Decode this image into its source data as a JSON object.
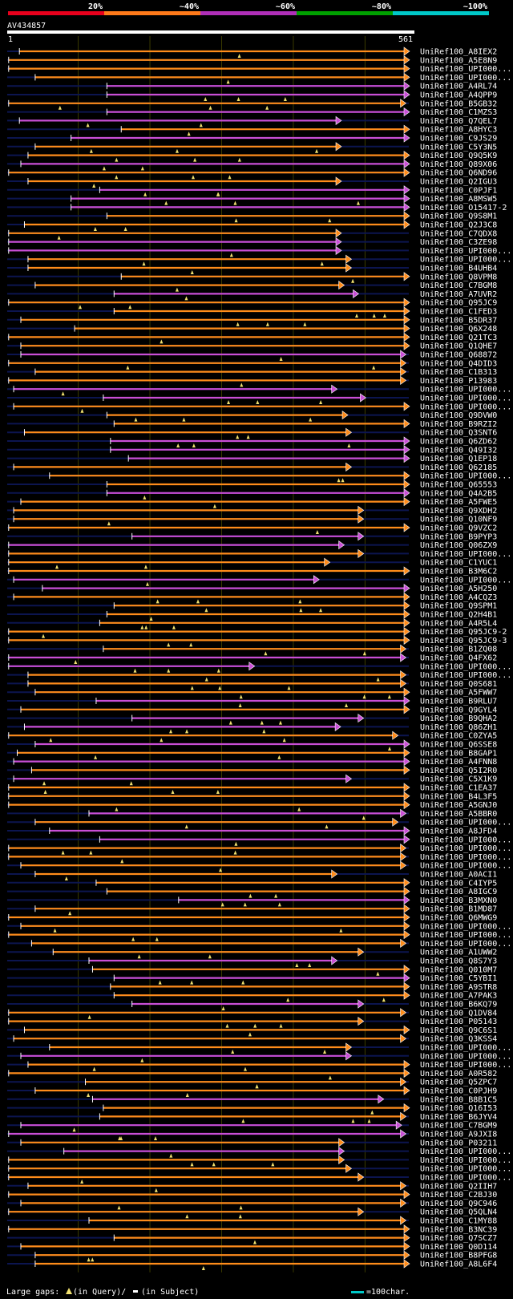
{
  "chart_data": {
    "type": "alignment-overview",
    "query_id": "AV434857",
    "query_start": "1",
    "query_end": "561",
    "query_length": 561,
    "identity_legend": [
      {
        "label": "20%",
        "color": "#e8001c"
      },
      {
        "label": "~40%",
        "color": "#ff7a1a"
      },
      {
        "label": "~60%",
        "color": "#b02fb8"
      },
      {
        "label": "~80%",
        "color": "#00a000"
      },
      {
        "label": "~100%",
        "color": "#00c8c8"
      }
    ],
    "series_colors": {
      "orange": "#ff8c1a",
      "purple": "#c94ed6",
      "green": "#21b021",
      "bg": "#0c1550",
      "gap": "#f0e070"
    },
    "footer": {
      "large_gaps_label": "Large gaps:",
      "in_query": "(in Query)/",
      "in_subject": "(in Subject)",
      "scale_label": "=100char."
    },
    "hits": [
      {
        "id": "UniRef100_A8IEX2",
        "start": 18,
        "end": 561,
        "color": "orange"
      },
      {
        "id": "UniRef100_A5E8N9",
        "start": 3,
        "end": 561,
        "color": "orange"
      },
      {
        "id": "UniRef100_UPI000...",
        "start": 3,
        "end": 561,
        "color": "orange"
      },
      {
        "id": "UniRef100_UPI000...",
        "start": 40,
        "end": 561,
        "color": "orange"
      },
      {
        "id": "UniRef100_A4RL74",
        "start": 140,
        "end": 561,
        "color": "purple"
      },
      {
        "id": "UniRef100_A4QPP9",
        "start": 140,
        "end": 561,
        "color": "purple"
      },
      {
        "id": "UniRef100_B5GB32",
        "start": 3,
        "end": 556,
        "color": "orange"
      },
      {
        "id": "UniRef100_C1MZS3",
        "start": 140,
        "end": 561,
        "color": "purple"
      },
      {
        "id": "UniRef100_Q7QEL7",
        "start": 18,
        "end": 466,
        "color": "purple"
      },
      {
        "id": "UniRef100_A8HYC3",
        "start": 160,
        "end": 561,
        "color": "orange"
      },
      {
        "id": "UniRef100_C9JS29",
        "start": 90,
        "end": 561,
        "color": "purple"
      },
      {
        "id": "UniRef100_C5Y3N5",
        "start": 40,
        "end": 466,
        "color": "orange"
      },
      {
        "id": "UniRef100_Q9Q5K9",
        "start": 30,
        "end": 561,
        "color": "orange"
      },
      {
        "id": "UniRef100_Q89X06",
        "start": 20,
        "end": 561,
        "color": "purple"
      },
      {
        "id": "UniRef100_Q6ND96",
        "start": 3,
        "end": 561,
        "color": "orange"
      },
      {
        "id": "UniRef100_Q2IGU3",
        "start": 30,
        "end": 466,
        "color": "orange"
      },
      {
        "id": "UniRef100_C0PJF1",
        "start": 130,
        "end": 561,
        "color": "purple"
      },
      {
        "id": "UniRef100_A8MSW5",
        "start": 90,
        "end": 561,
        "color": "purple"
      },
      {
        "id": "UniRef100_O15417-2",
        "start": 90,
        "end": 561,
        "color": "purple"
      },
      {
        "id": "UniRef100_Q9S8M1",
        "start": 140,
        "end": 561,
        "color": "orange"
      },
      {
        "id": "UniRef100_Q2J3C8",
        "start": 25,
        "end": 561,
        "color": "orange"
      },
      {
        "id": "UniRef100_C7QDX8",
        "start": 3,
        "end": 466,
        "color": "orange"
      },
      {
        "id": "UniRef100_C3ZE98",
        "start": 3,
        "end": 466,
        "color": "purple"
      },
      {
        "id": "UniRef100_UPI000...",
        "start": 3,
        "end": 466,
        "color": "purple"
      },
      {
        "id": "UniRef100_UPI000...",
        "start": 30,
        "end": 480,
        "color": "orange"
      },
      {
        "id": "UniRef100_B4UHB4",
        "start": 30,
        "end": 480,
        "color": "orange"
      },
      {
        "id": "UniRef100_Q8VPM8",
        "start": 160,
        "end": 561,
        "color": "orange"
      },
      {
        "id": "UniRef100_C7BGM8",
        "start": 40,
        "end": 470,
        "color": "orange"
      },
      {
        "id": "UniRef100_A7UVR2",
        "start": 150,
        "end": 490,
        "color": "purple"
      },
      {
        "id": "UniRef100_Q95JC9",
        "start": 3,
        "end": 561,
        "color": "orange"
      },
      {
        "id": "UniRef100_C1FED3",
        "start": 150,
        "end": 561,
        "color": "orange"
      },
      {
        "id": "UniRef100_B5DR37",
        "start": 20,
        "end": 561,
        "color": "orange"
      },
      {
        "id": "UniRef100_Q6X248",
        "start": 95,
        "end": 561,
        "color": "orange"
      },
      {
        "id": "UniRef100_Q21TC3",
        "start": 3,
        "end": 561,
        "color": "orange"
      },
      {
        "id": "UniRef100_Q1QHE7",
        "start": 20,
        "end": 561,
        "color": "orange"
      },
      {
        "id": "UniRef100_Q68872",
        "start": 20,
        "end": 556,
        "color": "purple"
      },
      {
        "id": "UniRef100_Q4DID3",
        "start": 3,
        "end": 556,
        "color": "orange"
      },
      {
        "id": "UniRef100_C1B313",
        "start": 40,
        "end": 556,
        "color": "orange"
      },
      {
        "id": "UniRef100_P13983",
        "start": 3,
        "end": 556,
        "color": "orange"
      },
      {
        "id": "UniRef100_UPI000...",
        "start": 10,
        "end": 460,
        "color": "purple"
      },
      {
        "id": "UniRef100_UPI000...",
        "start": 135,
        "end": 500,
        "color": "purple"
      },
      {
        "id": "UniRef100_UPI000...",
        "start": 10,
        "end": 561,
        "color": "orange"
      },
      {
        "id": "UniRef100_Q9DVW0",
        "start": 140,
        "end": 475,
        "color": "orange"
      },
      {
        "id": "UniRef100_B9RZI2",
        "start": 150,
        "end": 561,
        "color": "orange"
      },
      {
        "id": "UniRef100_Q3SNT6",
        "start": 25,
        "end": 480,
        "color": "orange"
      },
      {
        "id": "UniRef100_Q6ZD62",
        "start": 145,
        "end": 561,
        "color": "purple"
      },
      {
        "id": "UniRef100_Q49I32",
        "start": 145,
        "end": 561,
        "color": "purple"
      },
      {
        "id": "UniRef100_Q1EP18",
        "start": 170,
        "end": 561,
        "color": "purple"
      },
      {
        "id": "UniRef100_Q62185",
        "start": 10,
        "end": 480,
        "color": "orange"
      },
      {
        "id": "UniRef100_UPI000...",
        "start": 60,
        "end": 561,
        "color": "orange"
      },
      {
        "id": "UniRef100_Q65553",
        "start": 140,
        "end": 561,
        "color": "orange"
      },
      {
        "id": "UniRef100_Q4A2B5",
        "start": 140,
        "end": 561,
        "color": "purple"
      },
      {
        "id": "UniRef100_A5FWE5",
        "start": 20,
        "end": 561,
        "color": "orange"
      },
      {
        "id": "UniRef100_Q9XDH2",
        "start": 10,
        "end": 497,
        "color": "orange"
      },
      {
        "id": "UniRef100_Q10NF9",
        "start": 10,
        "end": 497,
        "color": "orange"
      },
      {
        "id": "UniRef100_Q9VZC2",
        "start": 3,
        "end": 561,
        "color": "orange"
      },
      {
        "id": "UniRef100_B9PYP3",
        "start": 175,
        "end": 497,
        "color": "purple"
      },
      {
        "id": "UniRef100_Q06ZX9",
        "start": 3,
        "end": 470,
        "color": "purple"
      },
      {
        "id": "UniRef100_UPI000...",
        "start": 3,
        "end": 497,
        "color": "orange"
      },
      {
        "id": "UniRef100_C1YUC1",
        "start": 3,
        "end": 450,
        "color": "orange"
      },
      {
        "id": "UniRef100_B3M6C2",
        "start": 3,
        "end": 561,
        "color": "orange"
      },
      {
        "id": "UniRef100_UPI000...",
        "start": 10,
        "end": 435,
        "color": "purple"
      },
      {
        "id": "UniRef100_A5H250",
        "start": 50,
        "end": 561,
        "color": "purple"
      },
      {
        "id": "UniRef100_A4CQZ3",
        "start": 10,
        "end": 561,
        "color": "orange"
      },
      {
        "id": "UniRef100_Q9SPM1",
        "start": 150,
        "end": 561,
        "color": "orange"
      },
      {
        "id": "UniRef100_Q2H4B1",
        "start": 140,
        "end": 561,
        "color": "orange"
      },
      {
        "id": "UniRef100_A4R5L4",
        "start": 130,
        "end": 561,
        "color": "orange"
      },
      {
        "id": "UniRef100_Q95JC9-2",
        "start": 3,
        "end": 561,
        "color": "orange"
      },
      {
        "id": "UniRef100_Q95JC9-3",
        "start": 3,
        "end": 561,
        "color": "orange"
      },
      {
        "id": "UniRef100_B1ZQ08",
        "start": 135,
        "end": 556,
        "color": "orange"
      },
      {
        "id": "UniRef100_Q4FX62",
        "start": 3,
        "end": 556,
        "color": "purple"
      },
      {
        "id": "UniRef100_UPI000...",
        "start": 3,
        "end": 345,
        "color": "purple"
      },
      {
        "id": "UniRef100_UPI000...",
        "start": 30,
        "end": 556,
        "color": "orange"
      },
      {
        "id": "UniRef100_Q0S681",
        "start": 30,
        "end": 556,
        "color": "orange"
      },
      {
        "id": "UniRef100_A5FWW7",
        "start": 40,
        "end": 561,
        "color": "orange"
      },
      {
        "id": "UniRef100_B9RLU7",
        "start": 125,
        "end": 561,
        "color": "purple"
      },
      {
        "id": "UniRef100_Q9GYL4",
        "start": 20,
        "end": 561,
        "color": "orange"
      },
      {
        "id": "UniRef100_B9QHA2",
        "start": 175,
        "end": 497,
        "color": "purple"
      },
      {
        "id": "UniRef100_Q86ZH1",
        "start": 25,
        "end": 465,
        "color": "purple"
      },
      {
        "id": "UniRef100_C0ZYA5",
        "start": 3,
        "end": 545,
        "color": "orange"
      },
      {
        "id": "UniRef100_Q6SSE8",
        "start": 40,
        "end": 561,
        "color": "purple"
      },
      {
        "id": "UniRef100_B8GAP1",
        "start": 15,
        "end": 561,
        "color": "orange"
      },
      {
        "id": "UniRef100_A4FNN8",
        "start": 10,
        "end": 561,
        "color": "purple"
      },
      {
        "id": "UniRef100_Q5I2R0",
        "start": 35,
        "end": 561,
        "color": "orange"
      },
      {
        "id": "UniRef100_C5X1K9",
        "start": 10,
        "end": 480,
        "color": "purple"
      },
      {
        "id": "UniRef100_C1EA37",
        "start": 3,
        "end": 561,
        "color": "orange"
      },
      {
        "id": "UniRef100_B4L3F5",
        "start": 3,
        "end": 561,
        "color": "orange"
      },
      {
        "id": "UniRef100_A5GNJ0",
        "start": 3,
        "end": 561,
        "color": "orange"
      },
      {
        "id": "UniRef100_A5BBR0",
        "start": 115,
        "end": 556,
        "color": "purple"
      },
      {
        "id": "UniRef100_UPI000...",
        "start": 40,
        "end": 545,
        "color": "orange"
      },
      {
        "id": "UniRef100_A8JFD4",
        "start": 60,
        "end": 561,
        "color": "purple"
      },
      {
        "id": "UniRef100_UPI000...",
        "start": 130,
        "end": 561,
        "color": "purple"
      },
      {
        "id": "UniRef100_UPI000...",
        "start": 3,
        "end": 556,
        "color": "orange"
      },
      {
        "id": "UniRef100_UPI000...",
        "start": 3,
        "end": 556,
        "color": "orange"
      },
      {
        "id": "UniRef100_UPI000...",
        "start": 20,
        "end": 556,
        "color": "orange"
      },
      {
        "id": "UniRef100_A0ACI1",
        "start": 40,
        "end": 460,
        "color": "orange"
      },
      {
        "id": "UniRef100_C4IYP5",
        "start": 125,
        "end": 561,
        "color": "orange"
      },
      {
        "id": "UniRef100_A8IGC9",
        "start": 140,
        "end": 561,
        "color": "orange"
      },
      {
        "id": "UniRef100_B3MXN0",
        "start": 240,
        "end": 561,
        "color": "purple"
      },
      {
        "id": "UniRef100_B1MD87",
        "start": 40,
        "end": 561,
        "color": "orange"
      },
      {
        "id": "UniRef100_Q6MWG9",
        "start": 3,
        "end": 561,
        "color": "orange"
      },
      {
        "id": "UniRef100_UPI000...",
        "start": 20,
        "end": 561,
        "color": "orange"
      },
      {
        "id": "UniRef100_UPI000...",
        "start": 3,
        "end": 561,
        "color": "orange"
      },
      {
        "id": "UniRef100_UPI000...",
        "start": 35,
        "end": 556,
        "color": "orange"
      },
      {
        "id": "UniRef100_A1UWW2",
        "start": 65,
        "end": 497,
        "color": "orange"
      },
      {
        "id": "UniRef100_Q8S7Y3",
        "start": 115,
        "end": 460,
        "color": "purple"
      },
      {
        "id": "UniRef100_Q010M7",
        "start": 120,
        "end": 561,
        "color": "orange"
      },
      {
        "id": "UniRef100_C5YBI1",
        "start": 150,
        "end": 561,
        "color": "purple"
      },
      {
        "id": "UniRef100_A9STR8",
        "start": 145,
        "end": 561,
        "color": "orange"
      },
      {
        "id": "UniRef100_A7PAK3",
        "start": 150,
        "end": 561,
        "color": "orange"
      },
      {
        "id": "UniRef100_B6KQ79",
        "start": 175,
        "end": 497,
        "color": "purple"
      },
      {
        "id": "UniRef100_Q1DV84",
        "start": 3,
        "end": 556,
        "color": "orange"
      },
      {
        "id": "UniRef100_P05143",
        "start": 3,
        "end": 497,
        "color": "orange"
      },
      {
        "id": "UniRef100_Q9C6S1",
        "start": 25,
        "end": 561,
        "color": "orange"
      },
      {
        "id": "UniRef100_Q3KSS4",
        "start": 10,
        "end": 556,
        "color": "orange"
      },
      {
        "id": "UniRef100_UPI000...",
        "start": 60,
        "end": 480,
        "color": "orange"
      },
      {
        "id": "UniRef100_UPI000...",
        "start": 20,
        "end": 480,
        "color": "purple"
      },
      {
        "id": "UniRef100_UPI000...",
        "start": 30,
        "end": 561,
        "color": "orange"
      },
      {
        "id": "UniRef100_A0R582",
        "start": 3,
        "end": 561,
        "color": "orange"
      },
      {
        "id": "UniRef100_Q5ZPC7",
        "start": 110,
        "end": 556,
        "color": "orange"
      },
      {
        "id": "UniRef100_C0PJH9",
        "start": 40,
        "end": 561,
        "color": "orange"
      },
      {
        "id": "UniRef100_B8B1C5",
        "start": 120,
        "end": 525,
        "color": "purple"
      },
      {
        "id": "UniRef100_Q16I53",
        "start": 135,
        "end": 561,
        "color": "orange"
      },
      {
        "id": "UniRef100_B6JYV4",
        "start": 130,
        "end": 556,
        "color": "orange"
      },
      {
        "id": "UniRef100_C7BGM9",
        "start": 20,
        "end": 550,
        "color": "purple"
      },
      {
        "id": "UniRef100_A9JXI8",
        "start": 3,
        "end": 556,
        "color": "purple"
      },
      {
        "id": "UniRef100_P03211",
        "start": 20,
        "end": 470,
        "color": "orange"
      },
      {
        "id": "UniRef100_UPI000...",
        "start": 80,
        "end": 470,
        "color": "purple"
      },
      {
        "id": "UniRef100_UPI000...",
        "start": 3,
        "end": 470,
        "color": "orange"
      },
      {
        "id": "UniRef100_UPI000...",
        "start": 3,
        "end": 480,
        "color": "orange"
      },
      {
        "id": "UniRef100_UPI000...",
        "start": 3,
        "end": 497,
        "color": "orange"
      },
      {
        "id": "UniRef100_Q2IIH7",
        "start": 30,
        "end": 556,
        "color": "orange"
      },
      {
        "id": "UniRef100_C2BJ30",
        "start": 3,
        "end": 561,
        "color": "orange"
      },
      {
        "id": "UniRef100_Q9C946",
        "start": 20,
        "end": 556,
        "color": "orange"
      },
      {
        "id": "UniRef100_Q5QLN4",
        "start": 3,
        "end": 497,
        "color": "orange"
      },
      {
        "id": "UniRef100_C1MY88",
        "start": 115,
        "end": 556,
        "color": "orange"
      },
      {
        "id": "UniRef100_B3NC39",
        "start": 3,
        "end": 561,
        "color": "orange"
      },
      {
        "id": "UniRef100_Q7SCZ7",
        "start": 150,
        "end": 561,
        "color": "orange"
      },
      {
        "id": "UniRef100_Q0D114",
        "start": 20,
        "end": 561,
        "color": "orange"
      },
      {
        "id": "UniRef100_B8PFG8",
        "start": 40,
        "end": 561,
        "color": "orange"
      },
      {
        "id": "UniRef100_A8L6F4",
        "start": 40,
        "end": 561,
        "color": "orange"
      }
    ]
  }
}
